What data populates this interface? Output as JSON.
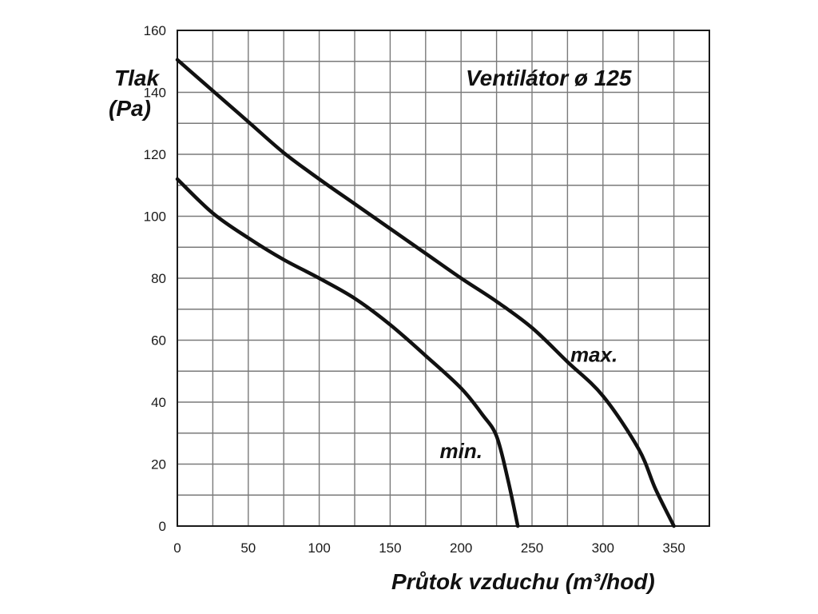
{
  "chart_data": {
    "type": "line",
    "title": "Ventilátor ø 125",
    "ylabel": [
      "Tlak",
      "(Pa)"
    ],
    "xlabel": "Průtok vzduchu (m³/hod)",
    "xlim": [
      0,
      375
    ],
    "ylim": [
      0,
      160
    ],
    "xticks": [
      0,
      50,
      100,
      150,
      200,
      250,
      300,
      350
    ],
    "yticks": [
      0,
      20,
      40,
      60,
      80,
      100,
      120,
      140,
      160
    ],
    "grid": true,
    "grid_x_step": 25,
    "grid_y_step": 10,
    "series": [
      {
        "name": "max.",
        "color": "#111111",
        "points": [
          [
            0,
            150.5
          ],
          [
            25,
            140.5
          ],
          [
            50,
            130.5
          ],
          [
            75,
            120.5
          ],
          [
            100,
            112
          ],
          [
            125,
            104
          ],
          [
            150,
            96
          ],
          [
            175,
            88
          ],
          [
            200,
            80
          ],
          [
            225,
            72.5
          ],
          [
            250,
            64
          ],
          [
            275,
            53
          ],
          [
            300,
            42
          ],
          [
            325,
            25
          ],
          [
            337,
            12
          ],
          [
            350,
            0
          ]
        ]
      },
      {
        "name": "min.",
        "color": "#111111",
        "points": [
          [
            0,
            112
          ],
          [
            25,
            101
          ],
          [
            50,
            93
          ],
          [
            75,
            86
          ],
          [
            100,
            80
          ],
          [
            125,
            73.5
          ],
          [
            150,
            65
          ],
          [
            175,
            55
          ],
          [
            200,
            44.5
          ],
          [
            215,
            36
          ],
          [
            225,
            29
          ],
          [
            233,
            15
          ],
          [
            240,
            0
          ]
        ]
      }
    ],
    "annotations": [
      {
        "text": "max.",
        "x": 277,
        "y": 53
      },
      {
        "text": "min.",
        "x": 185,
        "y": 22
      }
    ]
  }
}
